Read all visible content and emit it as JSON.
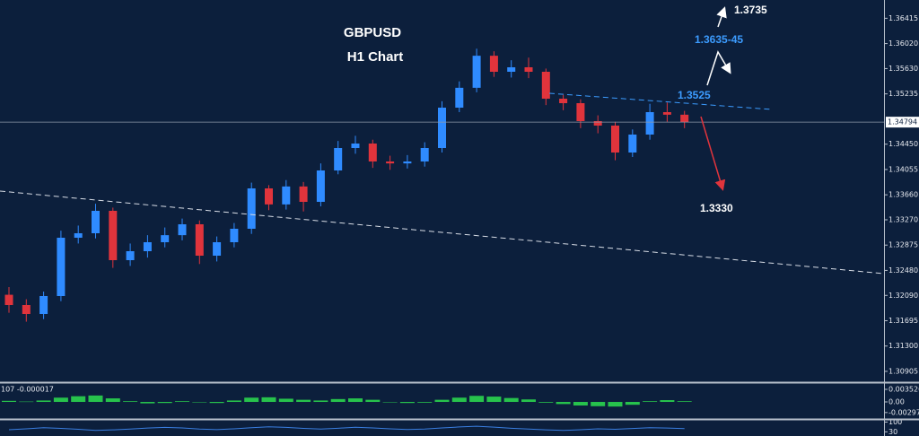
{
  "chart_data": [
    {
      "type": "candlestick",
      "title": "GBPUSD",
      "subtitle": "H1 Chart",
      "annotations": [
        "1.3735",
        "1.3635-45",
        "1.3525",
        "1.3330"
      ],
      "current_price": {
        "value": 1.34794,
        "label": "1.34794"
      },
      "up_color": "#2f8bff",
      "down_color": "#e0343c",
      "open": [
        1.321,
        1.3194,
        1.318,
        1.3208,
        1.3299,
        1.3306,
        1.3341,
        1.3264,
        1.3278,
        1.3292,
        1.3303,
        1.332,
        1.3271,
        1.3292,
        1.3313,
        1.3376,
        1.3351,
        1.3379,
        1.3355,
        1.3404,
        1.3439,
        1.3446,
        1.3418,
        1.3415,
        1.3418,
        1.3439,
        1.3502,
        1.3533,
        1.3583,
        1.3558,
        1.3565,
        1.3558,
        1.3516,
        1.3509,
        1.3481,
        1.3474,
        1.3432,
        1.346,
        1.3495,
        1.3491
      ],
      "high": [
        1.3222,
        1.3203,
        1.3215,
        1.331,
        1.3318,
        1.3352,
        1.3346,
        1.329,
        1.3303,
        1.3315,
        1.3329,
        1.3326,
        1.3301,
        1.3322,
        1.3385,
        1.3381,
        1.3389,
        1.3386,
        1.3415,
        1.345,
        1.3458,
        1.3452,
        1.3427,
        1.3428,
        1.3448,
        1.3512,
        1.3543,
        1.3594,
        1.359,
        1.3576,
        1.358,
        1.3563,
        1.3522,
        1.3515,
        1.349,
        1.348,
        1.3468,
        1.3508,
        1.351,
        1.3497
      ],
      "low": [
        1.3182,
        1.3168,
        1.3172,
        1.32,
        1.329,
        1.3298,
        1.3252,
        1.3255,
        1.3268,
        1.3284,
        1.3295,
        1.3258,
        1.3262,
        1.3284,
        1.3305,
        1.3342,
        1.3343,
        1.334,
        1.3348,
        1.3398,
        1.343,
        1.3408,
        1.3405,
        1.3407,
        1.341,
        1.3432,
        1.3495,
        1.3526,
        1.355,
        1.3549,
        1.3548,
        1.3506,
        1.3498,
        1.347,
        1.3462,
        1.342,
        1.3425,
        1.3452,
        1.348,
        1.347
      ],
      "close": [
        1.3194,
        1.318,
        1.3208,
        1.3299,
        1.3306,
        1.3341,
        1.3264,
        1.3278,
        1.3292,
        1.3303,
        1.332,
        1.3271,
        1.3292,
        1.3313,
        1.3376,
        1.3351,
        1.3379,
        1.3355,
        1.3404,
        1.3439,
        1.3446,
        1.3418,
        1.3415,
        1.3418,
        1.3439,
        1.3502,
        1.3533,
        1.3583,
        1.3558,
        1.3565,
        1.3558,
        1.3516,
        1.3509,
        1.3481,
        1.3474,
        1.3432,
        1.346,
        1.3495,
        1.3491,
        1.3479
      ],
      "ylim": [
        1.3075,
        1.367
      ],
      "yticks": [
        1.36415,
        {
          "value": 1.3602,
          "label": "1.36020"
        },
        {
          "value": 1.3563,
          "label": "1.35630"
        },
        1.35235,
        {
          "value": 1.3445,
          "label": "1.34450"
        },
        1.34055,
        {
          "value": 1.3366,
          "label": "1.33660"
        },
        {
          "value": 1.3327,
          "label": "1.33270"
        },
        1.32875,
        {
          "value": 1.3248,
          "label": "1.32480"
        },
        {
          "value": 1.3209,
          "label": "1.32090"
        },
        1.31695,
        {
          "value": 1.313,
          "label": "1.31300"
        },
        1.30905
      ]
    },
    {
      "type": "bar",
      "indicator_label": "107 -0.000017",
      "up_color": "#27c24c",
      "values": [
        0.0003,
        0.0001,
        0.0004,
        0.0012,
        0.0016,
        0.0018,
        0.001,
        0.0002,
        -0.0004,
        -0.0003,
        0.0002,
        -0.0001,
        -0.0003,
        0.0004,
        0.0012,
        0.0013,
        0.0009,
        0.0006,
        0.0004,
        0.0008,
        0.001,
        0.0006,
        -0.0001,
        -0.0003,
        -0.0002,
        0.0006,
        0.0012,
        0.0017,
        0.0015,
        0.0011,
        0.0007,
        -0.0002,
        -0.0006,
        -0.001,
        -0.0012,
        -0.0013,
        -0.0008,
        0.0002,
        0.0005,
        0.0002
      ],
      "ylim": [
        -0.00453,
        0.00504
      ],
      "yticks": [
        0.003526,
        {
          "value": 0,
          "label": "0.00"
        },
        -0.002979
      ]
    },
    {
      "type": "line",
      "color": "#3a7ee0",
      "values": [
        45,
        52,
        60,
        55,
        48,
        40,
        44,
        50,
        57,
        62,
        58,
        50,
        46,
        52,
        60,
        66,
        62,
        55,
        50,
        56,
        63,
        58,
        52,
        47,
        50,
        58,
        65,
        70,
        64,
        56,
        50,
        44,
        40,
        45,
        52,
        48,
        54,
        60,
        57,
        53
      ],
      "ylim": [
        0,
        100
      ],
      "yticks": [
        100,
        30
      ]
    }
  ]
}
